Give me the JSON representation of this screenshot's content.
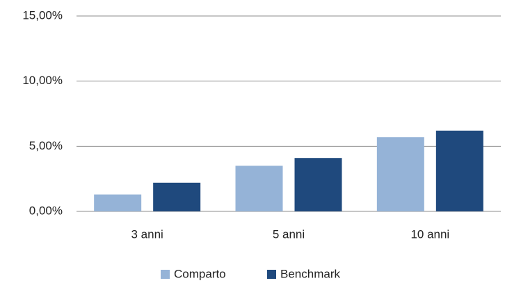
{
  "chart_data": {
    "type": "bar",
    "categories": [
      "3 anni",
      "5 anni",
      "10 anni"
    ],
    "series": [
      {
        "name": "Comparto",
        "color": "#95b3d7",
        "values": [
          1.3,
          3.5,
          5.7
        ]
      },
      {
        "name": "Benchmark",
        "color": "#1f497d",
        "values": [
          2.2,
          4.1,
          6.2
        ]
      }
    ],
    "ylim": [
      0,
      15
    ],
    "yticks": [
      {
        "value": 0,
        "label": "0,00%"
      },
      {
        "value": 5,
        "label": "5,00%"
      },
      {
        "value": 10,
        "label": "10,00%"
      },
      {
        "value": 15,
        "label": "15,00%"
      }
    ],
    "grid": true,
    "legend": "bottom"
  }
}
